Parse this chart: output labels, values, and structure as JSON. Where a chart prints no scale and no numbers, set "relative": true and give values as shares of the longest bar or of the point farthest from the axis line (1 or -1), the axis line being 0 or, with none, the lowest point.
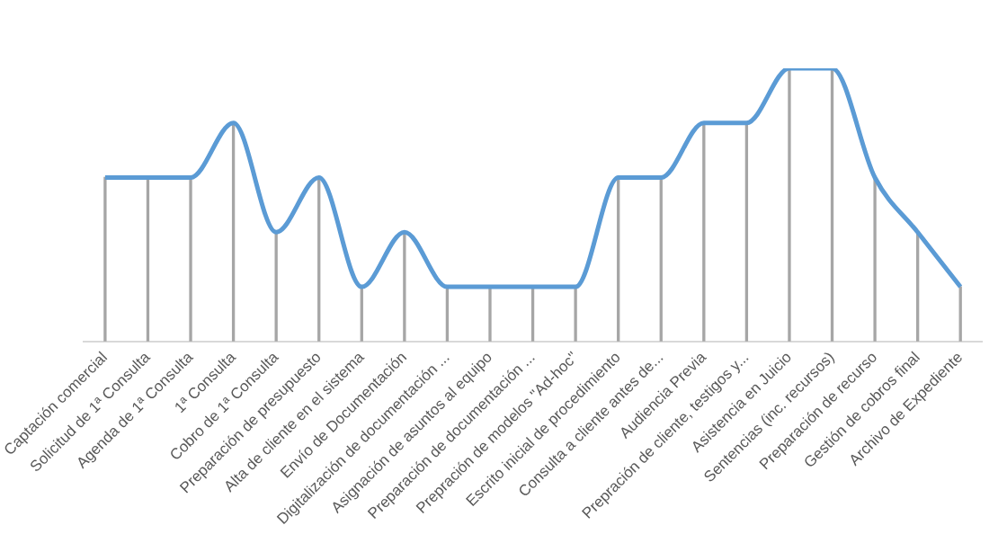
{
  "chart_data": {
    "type": "line",
    "relative": true,
    "categories": [
      "Captación comercial",
      "Solicitud de 1ª Consulta",
      "Agenda de 1ª Consulta",
      "1ª Consulta",
      "Cobro de 1ª Consulta",
      "Preparación de presupuesto",
      "Alta de cliente en el sistema",
      "Envío de Documentación",
      "Digitalización de documentación ...",
      "Asignación de asuntos al equipo",
      "Preparación de documentación ...",
      "Prepración de modelos \"Ad-hoc\"",
      "Escrito inicial de procedimiento",
      "Consulta a cliente antes de...",
      "Audiencia Previa",
      "Prepración de cliente, testigos y...",
      "Asistencia en Juicio",
      "Sentencias (inc. recursos)",
      "Preparación de recurso",
      "Gestión de cobros final",
      "Archivo de Expediente"
    ],
    "series": [
      {
        "type": "bar",
        "color": "#a6a6a6",
        "values": [
          0.6,
          0.6,
          0.6,
          0.8,
          0.4,
          0.6,
          0.2,
          0.4,
          0.2,
          0.2,
          0.2,
          0.2,
          0.6,
          0.6,
          0.8,
          0.8,
          1,
          1,
          0.6,
          0.4,
          0.2
        ]
      },
      {
        "color": "#5b9bd5",
        "values": [
          0.6,
          0.6,
          0.6,
          0.8,
          0.4,
          0.6,
          0.2,
          0.4,
          0.2,
          0.2,
          0.2,
          0.2,
          0.6,
          0.6,
          0.8,
          0.8,
          1,
          1,
          0.6,
          0.4,
          0.2
        ]
      }
    ],
    "legend": false,
    "marker": "none"
  }
}
